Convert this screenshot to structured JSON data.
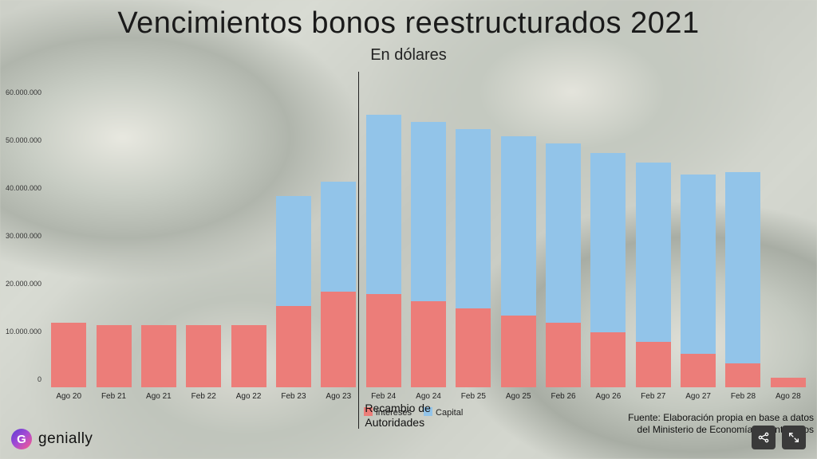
{
  "title": "Vencimientos bonos reestructurados 2021",
  "subtitle": "En dólares",
  "chart": {
    "type": "stacked-bar",
    "ymax": 66000000,
    "yticks": [
      {
        "v": 60000000,
        "label": "60.000.000"
      },
      {
        "v": 50000000,
        "label": "50.000.000"
      },
      {
        "v": 40000000,
        "label": "40.000.000"
      },
      {
        "v": 30000000,
        "label": "30.000.000"
      },
      {
        "v": 20000000,
        "label": "20.000.000"
      },
      {
        "v": 10000000,
        "label": "10.000.000"
      },
      {
        "v": 0,
        "label": "0"
      }
    ],
    "categories": [
      "Ago 20",
      "Feb 21",
      "Ago 21",
      "Feb 22",
      "Ago 22",
      "Feb 23",
      "Ago 23",
      "Feb 24",
      "Ago 24",
      "Feb 25",
      "Ago 25",
      "Feb 26",
      "Ago 26",
      "Feb 27",
      "Ago 27",
      "Feb 28",
      "Ago 28"
    ],
    "series": [
      {
        "key": "intereses",
        "label": "Intereses",
        "color": "#ec7d79",
        "values": [
          13500000,
          13000000,
          13000000,
          13000000,
          13000000,
          17000000,
          20000000,
          19500000,
          18000000,
          16500000,
          15000000,
          13500000,
          11500000,
          9500000,
          7000000,
          5000000,
          2000000
        ]
      },
      {
        "key": "capital",
        "label": "Capital",
        "color": "#92c4e9",
        "values": [
          0,
          0,
          0,
          0,
          0,
          23000000,
          23000000,
          37500000,
          37500000,
          37500000,
          37500000,
          37500000,
          37500000,
          37500000,
          37500000,
          40000000,
          0
        ]
      }
    ],
    "bar_width_ratio": 0.78,
    "background_color": "transparent",
    "axis_fontsize": 10,
    "title_fontsize": 38,
    "subtitle_fontsize": 20
  },
  "annotation": {
    "after_category": "Ago 23",
    "text_line1": "Recambio de",
    "text_line2": "Autoridades"
  },
  "legend": {
    "items": [
      {
        "label": "Intereses",
        "color": "#ec7d79"
      },
      {
        "label": "Capital",
        "color": "#92c4e9"
      }
    ]
  },
  "source_line1": "Fuente: Elaboración propia en base a datos",
  "source_line2": "del Ministerio de Economía de Entre Ríos",
  "logo_text": "genially",
  "logo_glyph": "G",
  "toolbar": {
    "share_label": "share",
    "fullscreen_label": "fullscreen"
  }
}
